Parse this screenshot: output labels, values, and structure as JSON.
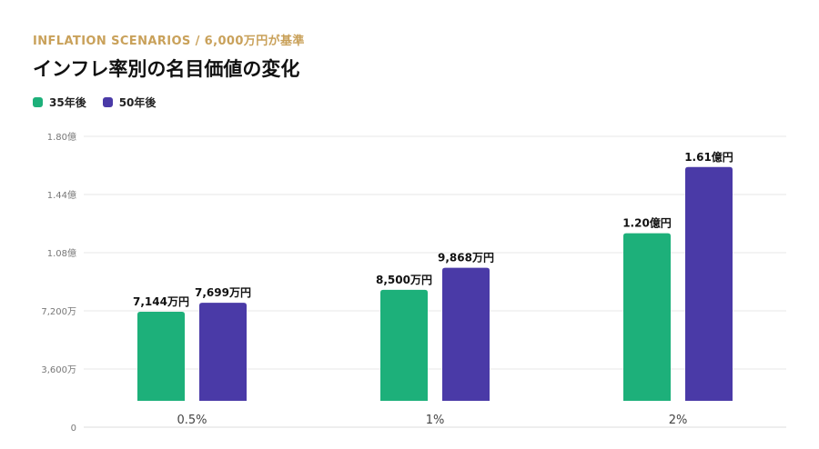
{
  "header": {
    "eyebrow": "INFLATION SCENARIOS / 6,000万円が基準",
    "title": "インフレ率別の名目価値の変化"
  },
  "colors": {
    "accent": "#c9a15a",
    "series_35": "#1db07a",
    "series_50": "#4a3aa7",
    "grid": "#e5e5e5"
  },
  "chart_data": {
    "type": "bar",
    "categories": [
      "0.5%",
      "1%",
      "2%"
    ],
    "series": [
      {
        "name": "35年後",
        "values": [
          7144,
          8500,
          12000
        ],
        "labels": [
          "7,144万円",
          "8,500万円",
          "1.20億円"
        ],
        "color": "#1db07a"
      },
      {
        "name": "50年後",
        "values": [
          7699,
          9868,
          16100
        ],
        "labels": [
          "7,699万円",
          "9,868万円",
          "1.61億円"
        ],
        "color": "#4a3aa7"
      }
    ],
    "y_ticks": [
      {
        "value": 0,
        "label": "0"
      },
      {
        "value": 3600,
        "label": "3,600万"
      },
      {
        "value": 7200,
        "label": "7,200万"
      },
      {
        "value": 10800,
        "label": "1.08億"
      },
      {
        "value": 14400,
        "label": "1.44億"
      },
      {
        "value": 18000,
        "label": "1.80億"
      }
    ],
    "ylim": [
      0,
      18000
    ],
    "grid": true,
    "legend": "top-left"
  }
}
